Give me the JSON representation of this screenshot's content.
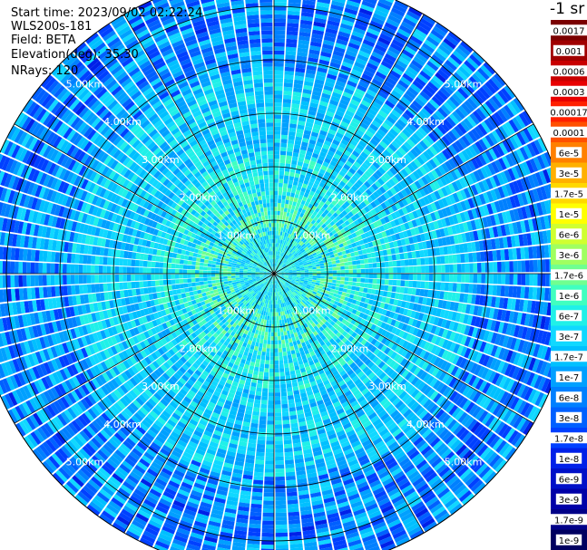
{
  "header": {
    "start_time": "Start time: 2023/09/02 02:22:24",
    "instrument": "WLS200s-181",
    "field": "Field: BETA",
    "elevation": "Elevation(deg): 35.30",
    "nrays": "NRays: 120"
  },
  "units_label": "-1 sr",
  "chart_data": {
    "type": "heatmap",
    "projection": "polar-ppi",
    "field": "BETA",
    "n_rays": 120,
    "elevation_deg": 35.3,
    "range_rings_km": [
      1,
      2,
      3,
      4,
      5
    ],
    "range_ring_labels": [
      "1.00km",
      "2.00km",
      "3.00km",
      "4.00km",
      "5.00km"
    ],
    "max_range_km": 5.6,
    "spokes_deg": [
      0,
      30,
      60,
      90,
      120,
      150,
      180,
      210,
      240,
      270,
      300,
      330
    ],
    "color_scale": [
      {
        "label": "0.0017",
        "value": 0.0017,
        "color": "#7a0000",
        "text": "#ffffff"
      },
      {
        "label": "0.001",
        "value": 0.001,
        "color": "#a00000",
        "text": "#ffffff"
      },
      {
        "label": "0.0006",
        "value": 0.0006,
        "color": "#c80000",
        "text": "#ffffff"
      },
      {
        "label": "0.0003",
        "value": 0.0003,
        "color": "#e80000",
        "text": "#ffffff"
      },
      {
        "label": "0.00017",
        "value": 0.00017,
        "color": "#ff2000",
        "text": "#000000"
      },
      {
        "label": "0.0001",
        "value": 0.0001,
        "color": "#ff5000",
        "text": "#000000"
      },
      {
        "label": "6e-5",
        "value": 6e-05,
        "color": "#ff8000",
        "text": "#000000"
      },
      {
        "label": "3e-5",
        "value": 3e-05,
        "color": "#ffb000",
        "text": "#000000"
      },
      {
        "label": "1.7e-5",
        "value": 1.7e-05,
        "color": "#ffd800",
        "text": "#000000"
      },
      {
        "label": "1e-5",
        "value": 1e-05,
        "color": "#ffff00",
        "text": "#000000"
      },
      {
        "label": "6e-6",
        "value": 6e-06,
        "color": "#d0ff30",
        "text": "#000000"
      },
      {
        "label": "3e-6",
        "value": 3e-06,
        "color": "#a0ff60",
        "text": "#000000"
      },
      {
        "label": "1.7e-6",
        "value": 1.7e-06,
        "color": "#70ff90",
        "text": "#000000"
      },
      {
        "label": "1e-6",
        "value": 1e-06,
        "color": "#40ffc0",
        "text": "#000000"
      },
      {
        "label": "6e-7",
        "value": 6e-07,
        "color": "#20f0e8",
        "text": "#000000"
      },
      {
        "label": "3e-7",
        "value": 3e-07,
        "color": "#10d8ff",
        "text": "#000000"
      },
      {
        "label": "1.7e-7",
        "value": 1.7e-07,
        "color": "#00c0ff",
        "text": "#000000"
      },
      {
        "label": "1e-7",
        "value": 1e-07,
        "color": "#00a0ff",
        "text": "#000000"
      },
      {
        "label": "6e-8",
        "value": 6e-08,
        "color": "#0080ff",
        "text": "#000000"
      },
      {
        "label": "3e-8",
        "value": 3e-08,
        "color": "#0060ff",
        "text": "#000000"
      },
      {
        "label": "1.7e-8",
        "value": 1.7e-08,
        "color": "#0040ff",
        "text": "#ffffff"
      },
      {
        "label": "1e-8",
        "value": 1e-08,
        "color": "#0020e8",
        "text": "#ffffff"
      },
      {
        "label": "6e-9",
        "value": 6e-09,
        "color": "#0010c8",
        "text": "#ffffff"
      },
      {
        "label": "3e-9",
        "value": 3e-09,
        "color": "#0000a8",
        "text": "#ffffff"
      },
      {
        "label": "1.7e-9",
        "value": 1.7e-09,
        "color": "#000088",
        "text": "#ffffff"
      },
      {
        "label": "1e-9",
        "value": 1e-09,
        "color": "#000060",
        "text": "#ffffff"
      }
    ]
  }
}
